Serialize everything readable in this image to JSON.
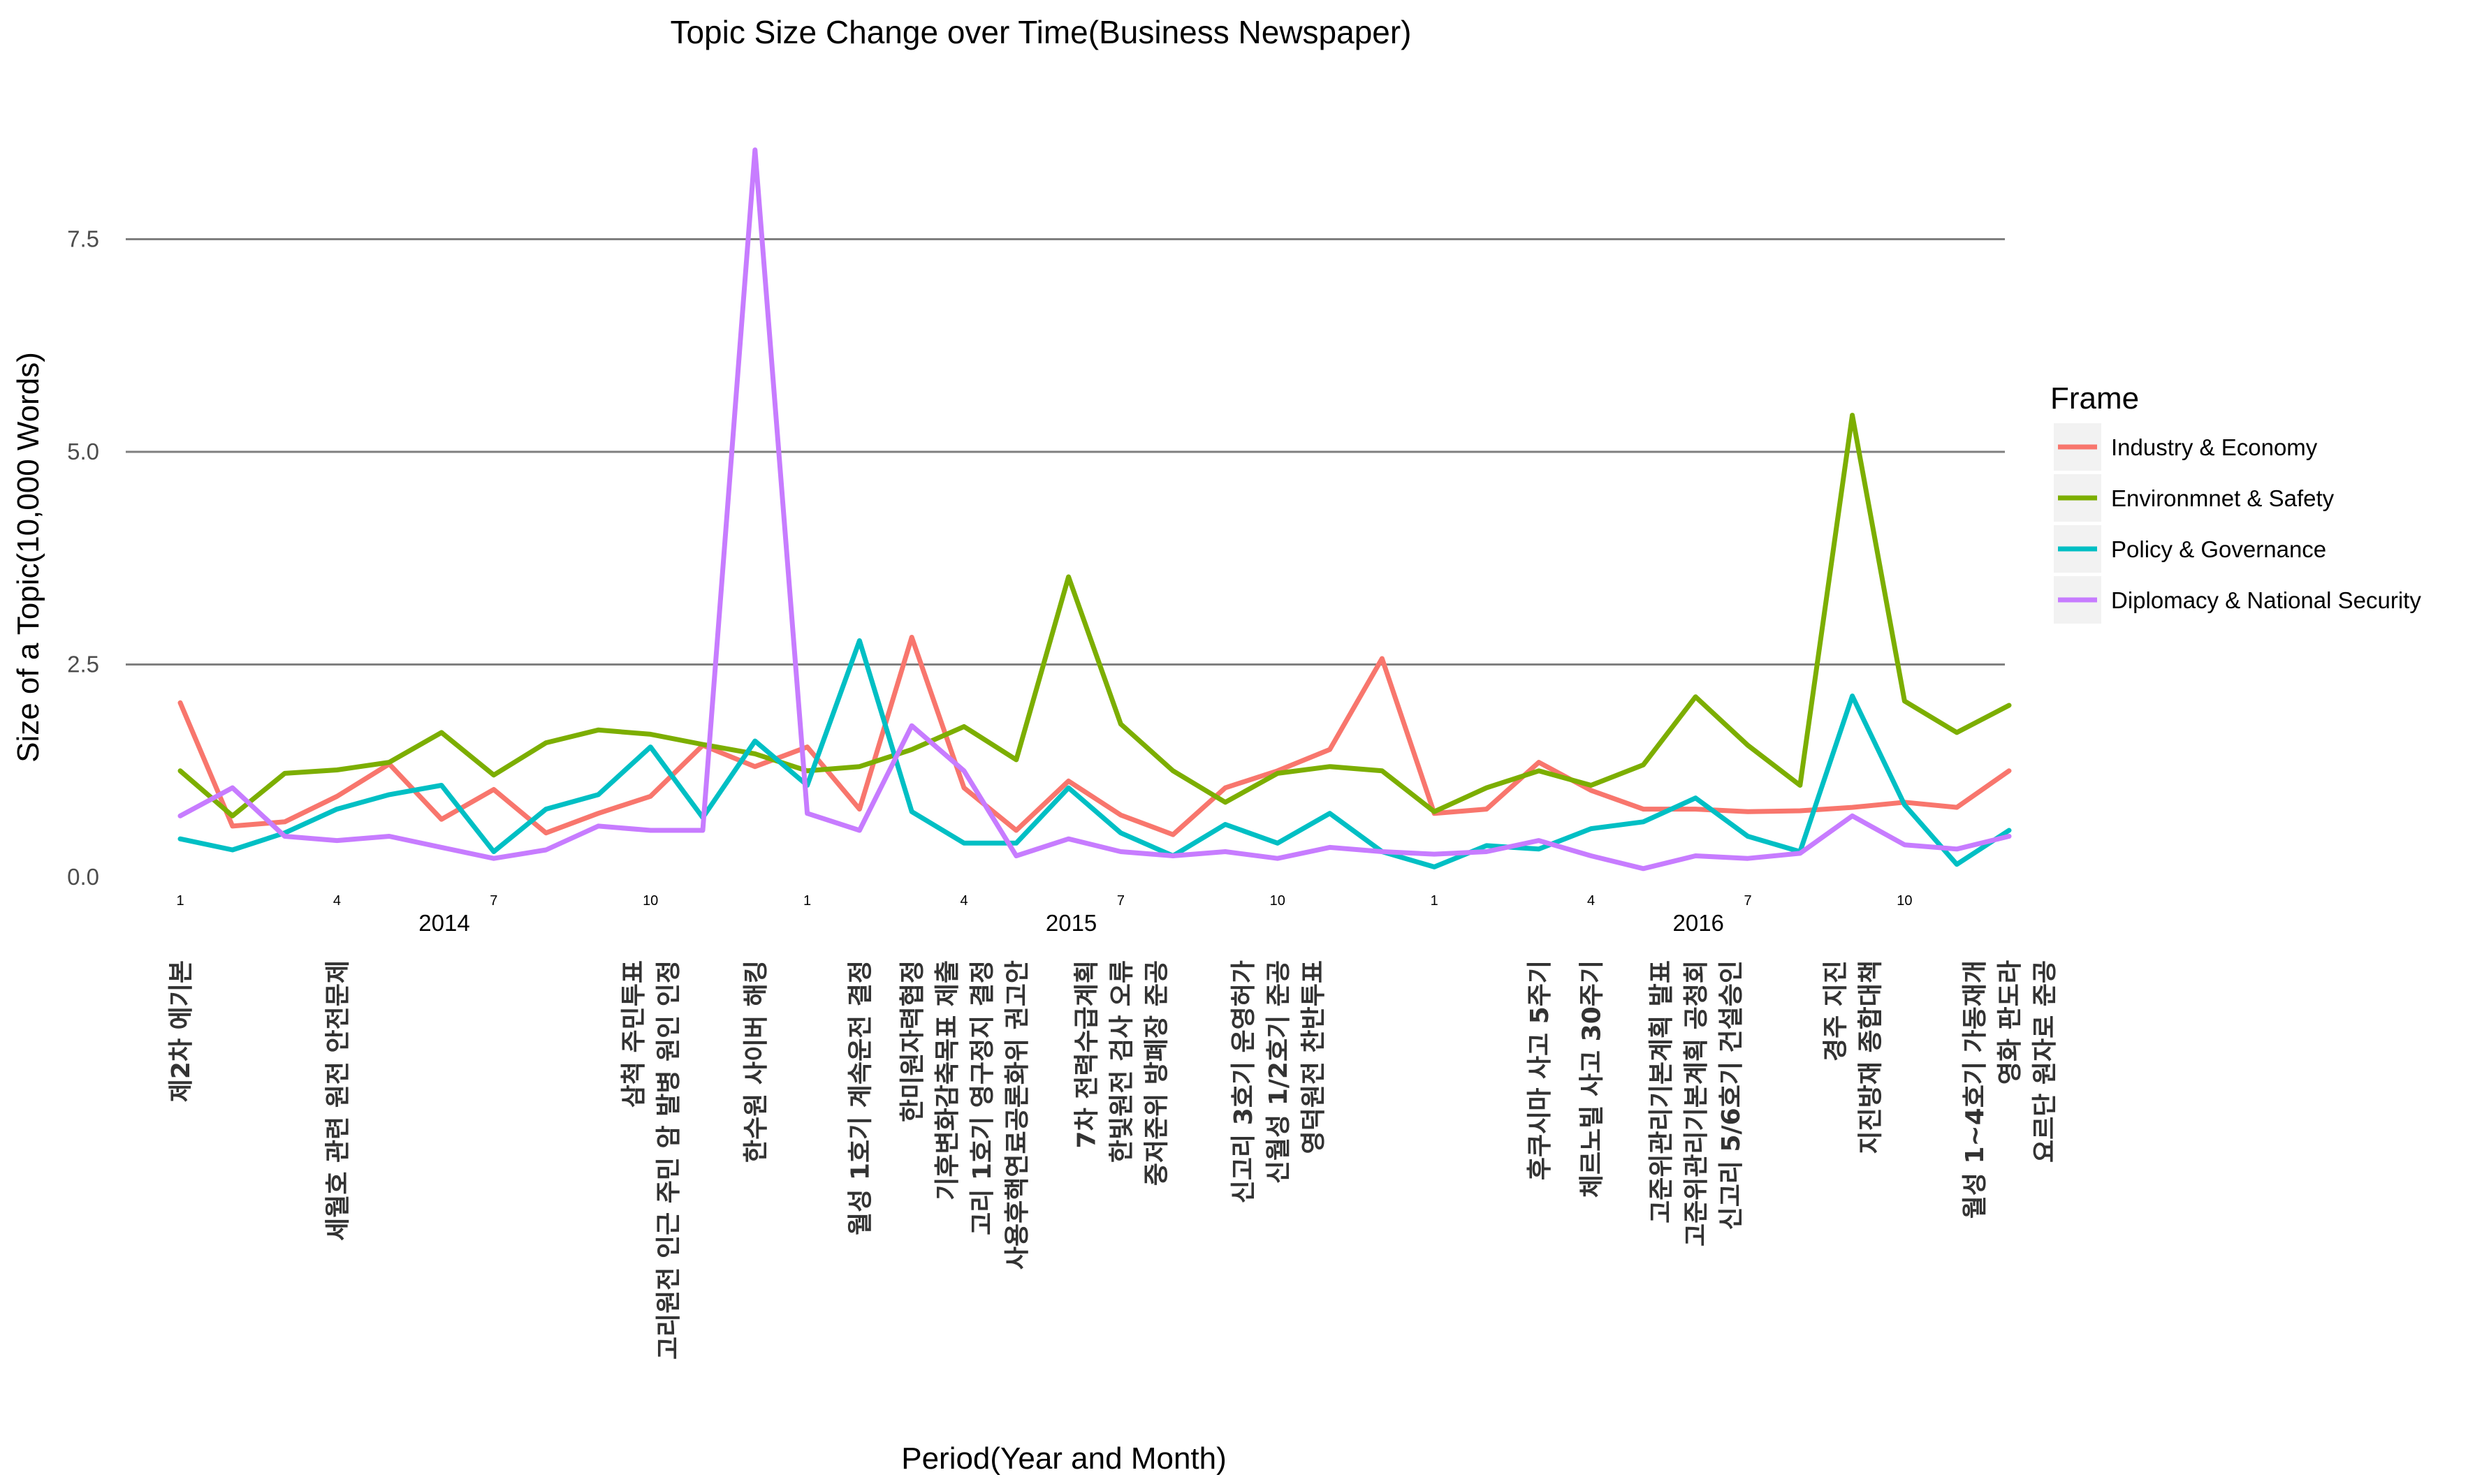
{
  "chart_data": {
    "type": "line",
    "title": "Topic Size Change over Time(Business Newspaper)",
    "xlabel": "Period(Year and Month)",
    "ylabel": "Size of a Topic(10,000 Words)",
    "ylim": [
      0,
      8.55
    ],
    "yticks": [
      0.0,
      2.5,
      5.0,
      7.5
    ],
    "ytick_labels": [
      "0.0",
      "2.5",
      "5.0",
      "7.5"
    ],
    "grid": "horizontal",
    "x": [
      "2014-01",
      "2014-02",
      "2014-03",
      "2014-04",
      "2014-05",
      "2014-06",
      "2014-07",
      "2014-08",
      "2014-09",
      "2014-10",
      "2014-11",
      "2014-12",
      "2015-01",
      "2015-02",
      "2015-03",
      "2015-04",
      "2015-05",
      "2015-06",
      "2015-07",
      "2015-08",
      "2015-09",
      "2015-10",
      "2015-11",
      "2015-12",
      "2016-01",
      "2016-02",
      "2016-03",
      "2016-04",
      "2016-05",
      "2016-06",
      "2016-07",
      "2016-08",
      "2016-09",
      "2016-10",
      "2016-11",
      "2016-12"
    ],
    "month_ticks": [
      {
        "x": "2014-01",
        "label": "1"
      },
      {
        "x": "2014-04",
        "label": "4"
      },
      {
        "x": "2014-07",
        "label": "7"
      },
      {
        "x": "2014-10",
        "label": "10"
      },
      {
        "x": "2015-01",
        "label": "1"
      },
      {
        "x": "2015-04",
        "label": "4"
      },
      {
        "x": "2015-07",
        "label": "7"
      },
      {
        "x": "2015-10",
        "label": "10"
      },
      {
        "x": "2016-01",
        "label": "1"
      },
      {
        "x": "2016-04",
        "label": "4"
      },
      {
        "x": "2016-07",
        "label": "7"
      },
      {
        "x": "2016-10",
        "label": "10"
      }
    ],
    "year_ticks": [
      {
        "x": "2014-06",
        "label": "2014"
      },
      {
        "x": "2015-06",
        "label": "2015"
      },
      {
        "x": "2016-06",
        "label": "2016"
      }
    ],
    "legend": {
      "title": "Frame",
      "placement": "right"
    },
    "series": [
      {
        "name": "Industry & Economy",
        "color": "#F8766D",
        "values": [
          2.05,
          0.6,
          0.65,
          0.95,
          1.33,
          0.68,
          1.03,
          0.52,
          0.75,
          0.95,
          1.55,
          1.3,
          1.53,
          0.8,
          2.82,
          1.05,
          0.55,
          1.13,
          0.73,
          0.5,
          1.05,
          1.25,
          1.5,
          2.57,
          0.75,
          0.8,
          1.35,
          1.02,
          0.8,
          0.8,
          0.77,
          0.78,
          0.82,
          0.88,
          0.82,
          1.25
        ]
      },
      {
        "name": "Environmnet & Safety",
        "color": "#7CAE00",
        "values": [
          1.25,
          0.72,
          1.22,
          1.26,
          1.35,
          1.7,
          1.2,
          1.58,
          1.73,
          1.68,
          1.56,
          1.45,
          1.25,
          1.3,
          1.5,
          1.77,
          1.38,
          3.53,
          1.8,
          1.25,
          0.88,
          1.22,
          1.3,
          1.25,
          0.77,
          1.05,
          1.25,
          1.08,
          1.32,
          2.12,
          1.55,
          1.08,
          5.43,
          2.07,
          1.7,
          2.02
        ]
      },
      {
        "name": "Policy & Governance",
        "color": "#00BFC4",
        "values": [
          0.45,
          0.32,
          0.52,
          0.8,
          0.97,
          1.08,
          0.3,
          0.8,
          0.97,
          1.53,
          0.7,
          1.6,
          1.08,
          2.78,
          0.77,
          0.4,
          0.4,
          1.05,
          0.52,
          0.25,
          0.62,
          0.4,
          0.75,
          0.3,
          0.12,
          0.37,
          0.33,
          0.57,
          0.65,
          0.93,
          0.48,
          0.3,
          2.13,
          0.85,
          0.15,
          0.55
        ]
      },
      {
        "name": "Diplomacy & National Security",
        "color": "#C77CFF",
        "values": [
          0.72,
          1.05,
          0.48,
          0.43,
          0.48,
          0.35,
          0.22,
          0.32,
          0.6,
          0.55,
          0.55,
          8.55,
          0.75,
          0.55,
          1.78,
          1.25,
          0.25,
          0.45,
          0.3,
          0.25,
          0.3,
          0.22,
          0.35,
          0.3,
          0.27,
          0.3,
          0.43,
          0.25,
          0.1,
          0.25,
          0.22,
          0.28,
          0.72,
          0.38,
          0.33,
          0.48
        ]
      }
    ],
    "annotations": [
      {
        "x": "2014-01",
        "lines": [
          "제2차 에기본"
        ]
      },
      {
        "x": "2014-04",
        "lines": [
          "세월호 관련 원전 안전문제"
        ]
      },
      {
        "x": "2014-10",
        "lines": [
          "삼척 주민투표",
          "고리원전 인근 주민 암 발병 원인 인정"
        ]
      },
      {
        "x": "2014-12",
        "lines": [
          "한수원 사이버 해킹"
        ]
      },
      {
        "x": "2015-02",
        "lines": [
          "월성 1호기 계속운전 결정"
        ]
      },
      {
        "x": "2015-04",
        "lines": [
          "한미원자력협정",
          "기후변화감축목표 제출",
          "고리 1호기 영구정지 결정",
          "사용후핵연료공론화위 권고안"
        ]
      },
      {
        "x": "2015-07",
        "lines": [
          "7차 전력수급계획",
          "한빛원전 검사 오류",
          "중저준위 방폐장 준공"
        ]
      },
      {
        "x": "2015-10",
        "lines": [
          "신고리 3호기 운영허가",
          "신월성 1/2호기 준공",
          "영덕원전 찬반투표"
        ]
      },
      {
        "x": "2016-03",
        "lines": [
          "후쿠시마 사고 5주기"
        ]
      },
      {
        "x": "2016-04",
        "lines": [
          "체르노빌 사고 30주기"
        ]
      },
      {
        "x": "2016-06",
        "lines": [
          "고준위관리기본계획 발표",
          "고준위관리기본계획 공청회",
          "신고리 5/6호기 건설승인"
        ]
      },
      {
        "x": "2016-09",
        "lines": [
          "경주 지진",
          "지진방재 종합대책"
        ]
      },
      {
        "x": "2016-12",
        "lines": [
          "월성 1~4호기 가동재개",
          "영화 판도라",
          "요르단 원자로 준공"
        ]
      }
    ]
  }
}
